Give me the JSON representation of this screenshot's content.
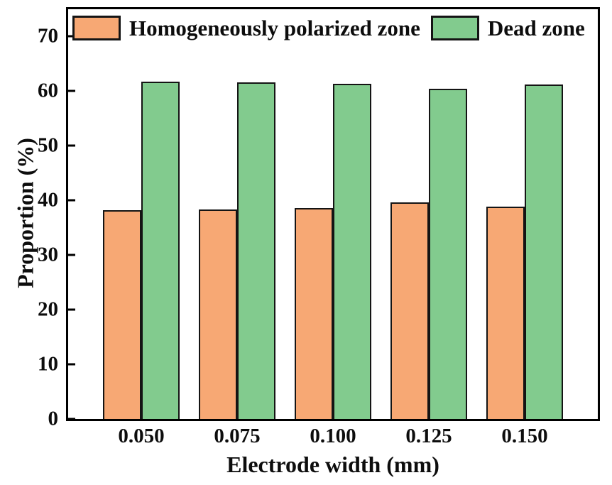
{
  "chart_data": {
    "type": "bar",
    "title": "",
    "xlabel": "Electrode width (mm)",
    "ylabel": "Proportion (%)",
    "categories": [
      "0.050",
      "0.075",
      "0.100",
      "0.125",
      "0.150"
    ],
    "series": [
      {
        "name": "Homogeneously polarized zone",
        "color": "#F7A874",
        "values": [
          38.2,
          38.4,
          38.6,
          39.6,
          38.8
        ]
      },
      {
        "name": "Dead zone",
        "color": "#82CB8E",
        "values": [
          61.8,
          61.6,
          61.4,
          60.4,
          61.2
        ]
      }
    ],
    "ylim": [
      0,
      75
    ],
    "yticks": [
      0,
      10,
      20,
      30,
      40,
      50,
      60,
      70
    ],
    "legend_position": "top-inside",
    "grid": false,
    "axis_color": "#000000",
    "bar_border_color": "#141414",
    "background": "#ffffff"
  }
}
